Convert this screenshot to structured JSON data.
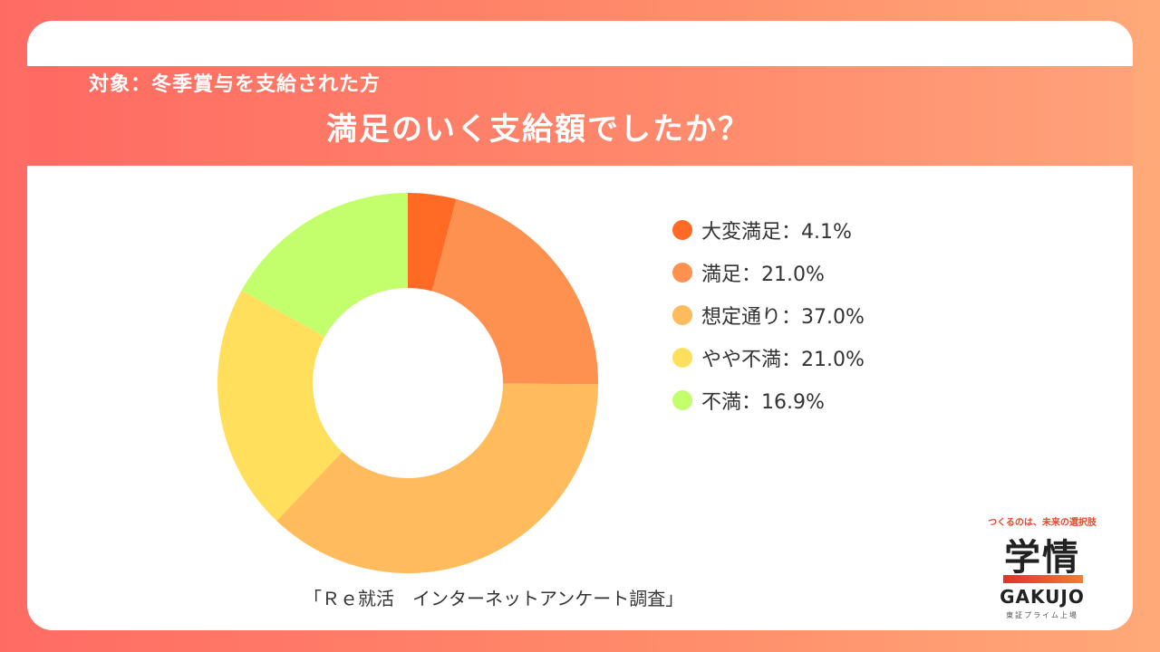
{
  "header": {
    "subtitle": "対象：冬季賞与を支給された方",
    "title": "満足のいく支給額でしたか？"
  },
  "chart_data": {
    "type": "pie",
    "donut": true,
    "categories": [
      "大変満足",
      "満足",
      "想定通り",
      "やや不満",
      "不満"
    ],
    "values": [
      4.1,
      21.0,
      37.0,
      21.0,
      16.9
    ],
    "colors": [
      "#ff6a25",
      "#ff9150",
      "#ffbb5c",
      "#ffdf5c",
      "#c3ff6c"
    ],
    "legend": [
      "大変満足：4.1%",
      "満足：21.0%",
      "想定通り：37.0%",
      "やや不満：21.0%",
      "不満：16.9%"
    ],
    "legend_position": "right"
  },
  "footer": {
    "source": "「Ｒｅ就活　インターネットアンケート調査」"
  },
  "logo": {
    "tagline": "つくるのは、未来の選択肢",
    "kanji": "学情",
    "name": "GAKUJO",
    "market": "東証プライム上場"
  }
}
